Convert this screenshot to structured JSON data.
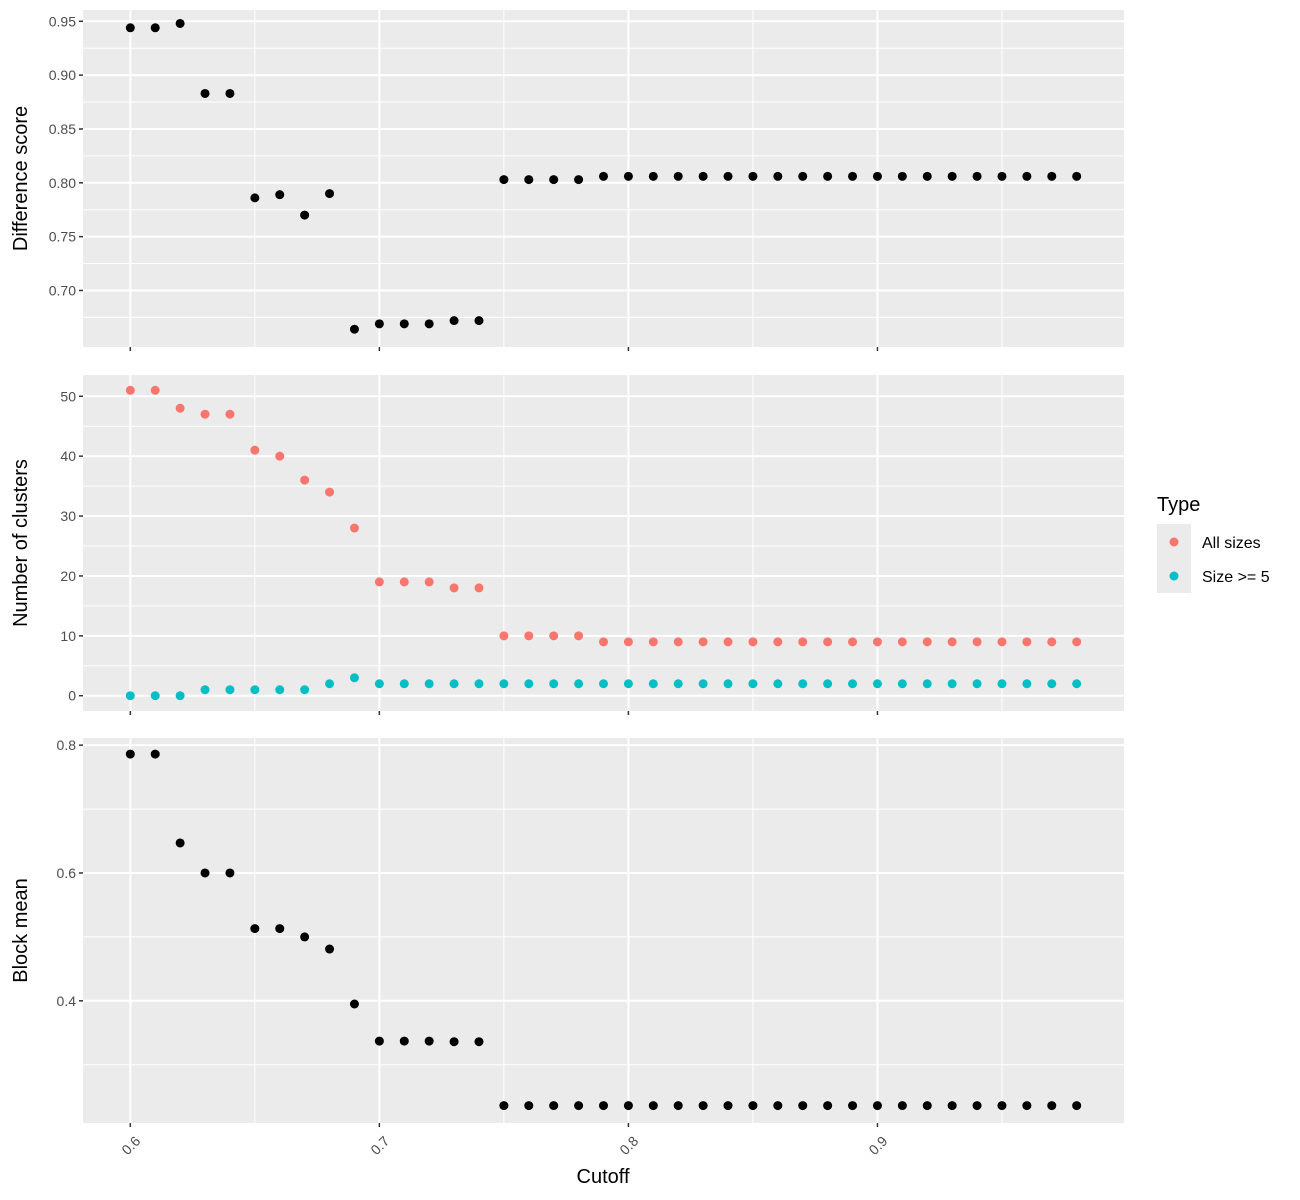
{
  "chart_data": {
    "type": "scatter",
    "x_label": "Cutoff",
    "x_ticks": [
      0.6,
      0.7,
      0.8,
      0.9
    ],
    "x_tick_labels": [
      "0.6",
      "0.7",
      "0.8",
      "0.9"
    ],
    "xlim": [
      0.581,
      0.999
    ],
    "x": [
      0.6,
      0.61,
      0.62,
      0.63,
      0.64,
      0.65,
      0.66,
      0.67,
      0.68,
      0.69,
      0.7,
      0.71,
      0.72,
      0.73,
      0.74,
      0.75,
      0.76,
      0.77,
      0.78,
      0.79,
      0.8,
      0.81,
      0.82,
      0.83,
      0.84,
      0.85,
      0.86,
      0.87,
      0.88,
      0.89,
      0.9,
      0.91,
      0.92,
      0.93,
      0.94,
      0.95,
      0.96,
      0.97,
      0.98
    ],
    "grid": true,
    "legend": {
      "title": "Type",
      "position": "right",
      "entries": [
        {
          "label": "All sizes",
          "color": "#F8766D"
        },
        {
          "label": "Size >= 5",
          "color": "#00BFC4"
        }
      ]
    },
    "panels": [
      {
        "ylabel": "Difference score",
        "ylim": [
          0.6475,
          0.9605
        ],
        "y_ticks": [
          0.7,
          0.75,
          0.8,
          0.85,
          0.9,
          0.95
        ],
        "y_tick_labels": [
          "0.70",
          "0.75",
          "0.80",
          "0.85",
          "0.90",
          "0.95"
        ],
        "series": [
          {
            "color": "#000000",
            "values": [
              0.944,
              0.944,
              0.948,
              0.883,
              0.883,
              0.786,
              0.789,
              0.77,
              0.79,
              0.664,
              0.669,
              0.669,
              0.669,
              0.672,
              0.672,
              0.803,
              0.803,
              0.803,
              0.803,
              0.806,
              0.806,
              0.806,
              0.806,
              0.806,
              0.806,
              0.806,
              0.806,
              0.806,
              0.806,
              0.806,
              0.806,
              0.806,
              0.806,
              0.806,
              0.806,
              0.806,
              0.806,
              0.806,
              0.806
            ]
          }
        ]
      },
      {
        "ylabel": "Number of clusters",
        "ylim": [
          -2.55,
          53.55
        ],
        "y_ticks": [
          0,
          10,
          20,
          30,
          40,
          50
        ],
        "y_tick_labels": [
          "0",
          "10",
          "20",
          "30",
          "40",
          "50"
        ],
        "series": [
          {
            "name": "All sizes",
            "color": "#F8766D",
            "values": [
              51,
              51,
              48,
              47,
              47,
              41,
              40,
              36,
              34,
              28,
              19,
              19,
              19,
              18,
              18,
              10,
              10,
              10,
              10,
              9,
              9,
              9,
              9,
              9,
              9,
              9,
              9,
              9,
              9,
              9,
              9,
              9,
              9,
              9,
              9,
              9,
              9,
              9,
              9
            ]
          },
          {
            "name": "Size >= 5",
            "color": "#00BFC4",
            "values": [
              0,
              0,
              0,
              1,
              1,
              1,
              1,
              1,
              2,
              3,
              2,
              2,
              2,
              2,
              2,
              2,
              2,
              2,
              2,
              2,
              2,
              2,
              2,
              2,
              2,
              2,
              2,
              2,
              2,
              2,
              2,
              2,
              2,
              2,
              2,
              2,
              2,
              2,
              2
            ]
          }
        ]
      },
      {
        "ylabel": "Block mean",
        "ylim": [
          0.2088,
          0.8112
        ],
        "y_ticks": [
          0.4,
          0.6,
          0.8
        ],
        "y_tick_labels": [
          "0.4",
          "0.6",
          "0.8"
        ],
        "series": [
          {
            "color": "#000000",
            "values": [
              0.786,
              0.786,
              0.647,
              0.6,
              0.6,
              0.513,
              0.513,
              0.5,
              0.481,
              0.395,
              0.337,
              0.337,
              0.337,
              0.336,
              0.336,
              0.236,
              0.236,
              0.236,
              0.236,
              0.236,
              0.236,
              0.236,
              0.236,
              0.236,
              0.236,
              0.236,
              0.236,
              0.236,
              0.236,
              0.236,
              0.236,
              0.236,
              0.236,
              0.236,
              0.236,
              0.236,
              0.236,
              0.236,
              0.236
            ]
          }
        ]
      }
    ]
  }
}
